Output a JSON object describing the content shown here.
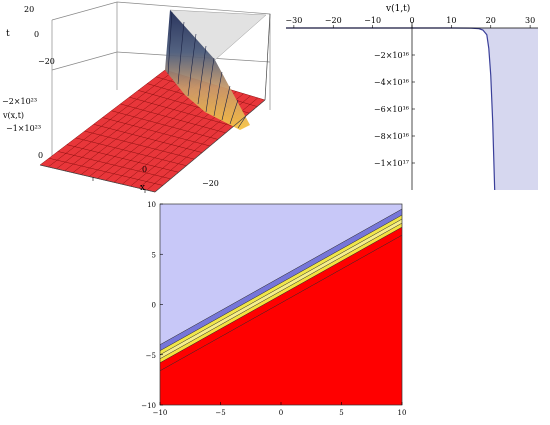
{
  "surface3d": {
    "type": "surface",
    "zlabel": "v(x,t)",
    "xlabel": "x",
    "ylabel": "t",
    "z_ticks": [
      "−2×10²³",
      "−1×10²³",
      "0"
    ],
    "x_ticks": [
      "0",
      "−20"
    ],
    "t_ticks": [
      "20",
      "0",
      "−20"
    ],
    "colors": {
      "floor": "#e8363a",
      "grid": "#8b1010",
      "wall_top": "#1e2a55",
      "wall_mid": "#c89a6a",
      "wall_bottom": "#f7c343"
    }
  },
  "chart_data": {
    "type": "line",
    "title": "v(1,t)",
    "x_ticks": [
      -30,
      -20,
      -10,
      0,
      10,
      20,
      30
    ],
    "y_ticks": [
      {
        "value": -2e+16,
        "label": "−2×10¹⁶"
      },
      {
        "value": -4e+16,
        "label": "−4×10¹⁶"
      },
      {
        "value": -6e+16,
        "label": "−6×10¹⁶"
      },
      {
        "value": -8e+16,
        "label": "−8×10¹⁶"
      },
      {
        "value": -1e+17,
        "label": "−1×10¹⁷"
      }
    ],
    "xlim": [
      -32,
      32
    ],
    "ylim": [
      -1.2e+17,
      0
    ],
    "x": [
      -32,
      10,
      15,
      17,
      18,
      19,
      19.5,
      20,
      20.5,
      21
    ],
    "y": [
      0,
      0,
      -100000000000000.0,
      -500000000000000.0,
      -1500000000000000.0,
      -5000000000000000.0,
      -1.5e+16,
      -3.5e+16,
      -7e+16,
      -1.2e+17
    ],
    "fill": "below",
    "line_color": "#3a3f9a",
    "fill_color": "#d6d7ef"
  },
  "contour": {
    "type": "contour",
    "x_ticks": [
      -10,
      -5,
      0,
      5,
      10
    ],
    "y_ticks": [
      -10,
      -5,
      0,
      5,
      10
    ],
    "xlim": [
      -10,
      10
    ],
    "ylim": [
      -10,
      10
    ],
    "lines": [
      {
        "y_at_x_min": -4.0,
        "y_at_x_max": 9.5
      },
      {
        "y_at_x_min": -4.6,
        "y_at_x_max": 8.9
      },
      {
        "y_at_x_min": -5.0,
        "y_at_x_max": 8.5
      },
      {
        "y_at_x_min": -5.4,
        "y_at_x_max": 8.1
      },
      {
        "y_at_x_min": -5.8,
        "y_at_x_max": 7.7
      },
      {
        "y_at_x_min": -6.6,
        "y_at_x_max": 6.9
      }
    ],
    "bands": [
      "#c8c8f8",
      "#7676d9",
      "#f0e64a",
      "#f6ee8a",
      "#f3e040",
      "#ff0000",
      "#ff0000"
    ]
  }
}
